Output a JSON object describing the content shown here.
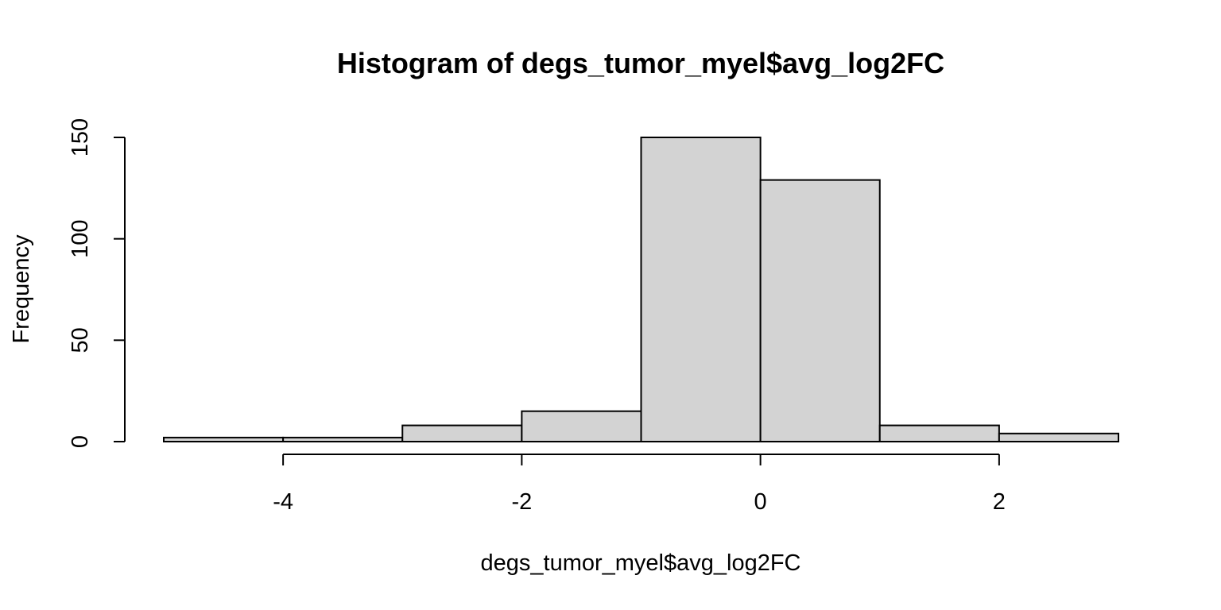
{
  "chart_data": {
    "type": "bar",
    "title": "Histogram of degs_tumor_myel$avg_log2FC",
    "xlabel": "degs_tumor_myel$avg_log2FC",
    "ylabel": "Frequency",
    "bin_edges": [
      -5,
      -4,
      -3,
      -2,
      -1,
      0,
      1,
      2,
      3
    ],
    "values": [
      2,
      2,
      8,
      15,
      150,
      129,
      8,
      4
    ],
    "xlim": [
      -5,
      3
    ],
    "ylim": [
      0,
      150
    ],
    "x_ticks": [
      -4,
      -2,
      0,
      2
    ],
    "x_tick_labels": [
      "-4",
      "-2",
      "0",
      "2"
    ],
    "y_ticks": [
      0,
      50,
      100,
      150
    ],
    "y_tick_labels": [
      "0",
      "50",
      "100",
      "150"
    ],
    "bar_fill": "#d3d3d3",
    "bar_stroke": "#000000",
    "grid": false,
    "legend": "none"
  }
}
